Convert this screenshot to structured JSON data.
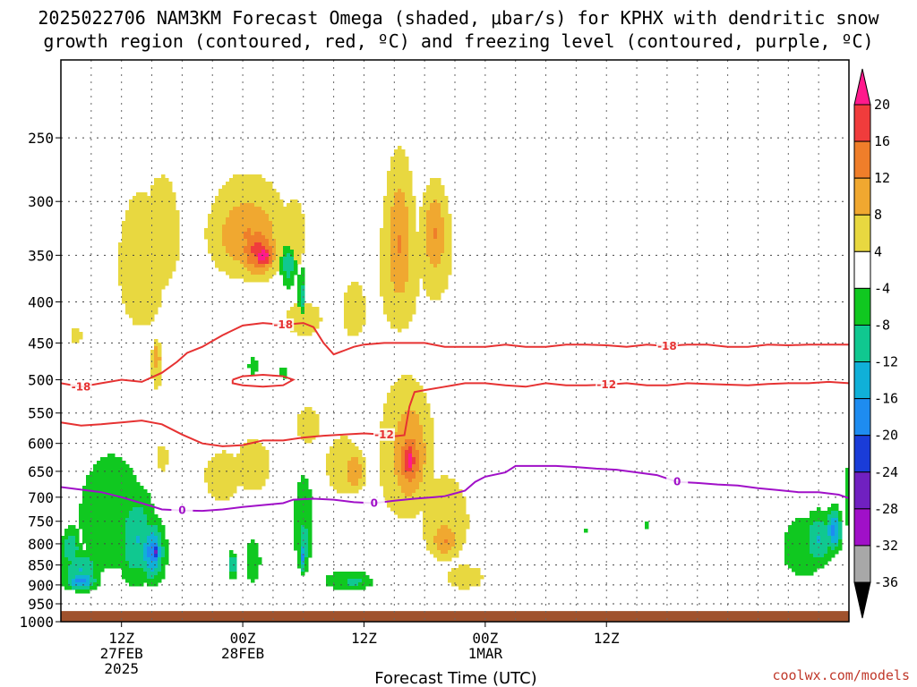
{
  "chart_data": {
    "type": "heatmap",
    "title_line1": "2025022706 NAM3KM Forecast Omega (shaded, μbar/s) for KPHX with dendritic snow",
    "title_line2": "growth region (contoured, red, ºC) and freezing level (contoured, purple, ºC)",
    "xlabel": "Forecast Time (UTC)",
    "credit": "coolwx.com/models",
    "y_scale": "log-pressure",
    "ylim": [
      1000,
      200
    ],
    "pressure_ticks": [
      "250",
      "300",
      "350",
      "400",
      "450",
      "500",
      "550",
      "600",
      "650",
      "700",
      "750",
      "800",
      "850",
      "900",
      "950",
      "1000"
    ],
    "x_range_hours": [
      6,
      84
    ],
    "time_ticks": [
      {
        "hour": 12,
        "l1": "12Z",
        "l2": "27FEB",
        "l3": "2025"
      },
      {
        "hour": 24,
        "l1": "00Z",
        "l2": "28FEB",
        "l3": ""
      },
      {
        "hour": 36,
        "l1": "12Z",
        "l2": "",
        "l3": ""
      },
      {
        "hour": 48,
        "l1": "00Z",
        "l2": "1MAR",
        "l3": ""
      },
      {
        "hour": 60,
        "l1": "12Z",
        "l2": "",
        "l3": ""
      }
    ],
    "grid": true,
    "ground_pressure": 970,
    "colorbar": {
      "labels": [
        "20",
        "16",
        "12",
        "8",
        "4",
        "-4",
        "-8",
        "-12",
        "-16",
        "-20",
        "-24",
        "-28",
        "-32",
        "-36"
      ],
      "colors": [
        "#ff1a8c",
        "#f03c3c",
        "#ef7e2a",
        "#f0a830",
        "#e8d840",
        "#ffffff",
        "#10c820",
        "#10c890",
        "#10b0d8",
        "#1e8cf0",
        "#1a3cd8",
        "#7020c0",
        "#a010c8",
        "#a8a8a8",
        "#000000"
      ]
    },
    "omega_blobs": [
      {
        "t": 14,
        "p": 360,
        "rt": 4,
        "rp": 120,
        "v": 5
      },
      {
        "t": 16,
        "p": 330,
        "rt": 3,
        "rp": 90,
        "v": 5
      },
      {
        "t": 24.5,
        "p": 325,
        "rt": 7,
        "rp": 85,
        "v": 5
      },
      {
        "t": 24.5,
        "p": 330,
        "rt": 5,
        "rp": 55,
        "v": 9
      },
      {
        "t": 25.5,
        "p": 345,
        "rt": 2.6,
        "rp": 35,
        "v": 13
      },
      {
        "t": 26,
        "p": 350,
        "rt": 1.5,
        "rp": 18,
        "v": 17
      },
      {
        "t": 29,
        "p": 330,
        "rt": 2,
        "rp": 55,
        "v": 5
      },
      {
        "t": 28.5,
        "p": 360,
        "rt": 1,
        "rp": 30,
        "v": -8
      },
      {
        "t": 30,
        "p": 420,
        "rt": 3,
        "rp": 35,
        "v": 5
      },
      {
        "t": 35,
        "p": 410,
        "rt": 2,
        "rp": 55,
        "v": 5
      },
      {
        "t": 39.5,
        "p": 360,
        "rt": 3.5,
        "rp": 130,
        "v": 5
      },
      {
        "t": 39.5,
        "p": 340,
        "rt": 2,
        "rp": 100,
        "v": 9
      },
      {
        "t": 43,
        "p": 340,
        "rt": 3,
        "rp": 100,
        "v": 5
      },
      {
        "t": 43,
        "p": 330,
        "rt": 1.8,
        "rp": 60,
        "v": 9
      },
      {
        "t": 40,
        "p": 620,
        "rt": 4.5,
        "rp": 220,
        "v": 5
      },
      {
        "t": 40.5,
        "p": 620,
        "rt": 3,
        "rp": 150,
        "v": 9
      },
      {
        "t": 40.5,
        "p": 630,
        "rt": 1.8,
        "rp": 80,
        "v": 13
      },
      {
        "t": 40.5,
        "p": 630,
        "rt": 0.9,
        "rp": 50,
        "v": 17
      },
      {
        "t": 34,
        "p": 640,
        "rt": 3,
        "rp": 90,
        "v": 5
      },
      {
        "t": 35,
        "p": 650,
        "rt": 1.5,
        "rp": 50,
        "v": 9
      },
      {
        "t": 44,
        "p": 750,
        "rt": 4,
        "rp": 160,
        "v": 5
      },
      {
        "t": 44,
        "p": 790,
        "rt": 2,
        "rp": 60,
        "v": 9
      },
      {
        "t": 46,
        "p": 880,
        "rt": 3,
        "rp": 50,
        "v": 5
      },
      {
        "t": 22,
        "p": 660,
        "rt": 3,
        "rp": 80,
        "v": 5
      },
      {
        "t": 25,
        "p": 640,
        "rt": 3,
        "rp": 80,
        "v": 5
      },
      {
        "t": 30.5,
        "p": 570,
        "rt": 2,
        "rp": 50,
        "v": 5
      },
      {
        "t": 15.5,
        "p": 480,
        "rt": 1,
        "rp": 60,
        "v": 5
      },
      {
        "t": 15.5,
        "p": 470,
        "rt": 0.5,
        "rp": 30,
        "v": 9
      },
      {
        "t": 7.5,
        "p": 440,
        "rt": 0.9,
        "rp": 18,
        "v": 5
      },
      {
        "t": 16,
        "p": 625,
        "rt": 1,
        "rp": 40,
        "v": 5
      },
      {
        "t": 11,
        "p": 740,
        "rt": 5.5,
        "rp": 210,
        "v": -5
      },
      {
        "t": 13.5,
        "p": 790,
        "rt": 2.5,
        "rp": 140,
        "v": -9
      },
      {
        "t": 15,
        "p": 820,
        "rt": 1.6,
        "rp": 90,
        "v": -13
      },
      {
        "t": 15.3,
        "p": 820,
        "rt": 0.8,
        "rp": 45,
        "v": -17
      },
      {
        "t": 15.3,
        "p": 820,
        "rt": 0.4,
        "rp": 25,
        "v": -21
      },
      {
        "t": 8,
        "p": 860,
        "rt": 2.5,
        "rp": 60,
        "v": -9
      },
      {
        "t": 7,
        "p": 810,
        "rt": 1.2,
        "rp": 60,
        "v": -9
      },
      {
        "t": 8,
        "p": 890,
        "rt": 2,
        "rp": 30,
        "v": -13
      },
      {
        "t": 25,
        "p": 840,
        "rt": 1.2,
        "rp": 90,
        "v": -5
      },
      {
        "t": 23,
        "p": 850,
        "rt": 0.6,
        "rp": 40,
        "v": -9
      },
      {
        "t": 30,
        "p": 760,
        "rt": 1.6,
        "rp": 180,
        "v": -5
      },
      {
        "t": 30,
        "p": 800,
        "rt": 0.8,
        "rp": 90,
        "v": -9
      },
      {
        "t": 30,
        "p": 830,
        "rt": 0.4,
        "rp": 50,
        "v": -13
      },
      {
        "t": 34.5,
        "p": 890,
        "rt": 4,
        "rp": 45,
        "v": -5
      },
      {
        "t": 35,
        "p": 890,
        "rt": 1.5,
        "rp": 20,
        "v": -9
      },
      {
        "t": 29.8,
        "p": 395,
        "rt": 0.6,
        "rp": 60,
        "v": -5
      },
      {
        "t": 29.8,
        "p": 395,
        "rt": 0.35,
        "rp": 35,
        "v": -9
      },
      {
        "t": 25,
        "p": 480,
        "rt": 0.7,
        "rp": 20,
        "v": -5
      },
      {
        "t": 28,
        "p": 490,
        "rt": 0.4,
        "rp": 16,
        "v": -5
      },
      {
        "t": 79.5,
        "p": 810,
        "rt": 3.5,
        "rp": 120,
        "v": -5
      },
      {
        "t": 81,
        "p": 790,
        "rt": 2,
        "rp": 80,
        "v": -9
      },
      {
        "t": 82.5,
        "p": 770,
        "rt": 1,
        "rp": 60,
        "v": -13
      },
      {
        "t": 84,
        "p": 700,
        "rt": 0.6,
        "rp": 120,
        "v": -5
      },
      {
        "t": 64,
        "p": 760,
        "rt": 0.3,
        "rp": 14,
        "v": -5
      },
      {
        "t": 58,
        "p": 770,
        "rt": 0.3,
        "rp": 12,
        "v": -5
      }
    ],
    "contours": [
      {
        "label": "-18",
        "label_t": [
          9,
          28,
          66
        ],
        "color": "#e63232",
        "points": [
          [
            6,
            505
          ],
          [
            8,
            510
          ],
          [
            10,
            505
          ],
          [
            12,
            500
          ],
          [
            14,
            503
          ],
          [
            16,
            490
          ],
          [
            17.5,
            475
          ],
          [
            18.5,
            463
          ],
          [
            20,
            455
          ],
          [
            22,
            440
          ],
          [
            24,
            428
          ],
          [
            26,
            425
          ],
          [
            28,
            427
          ],
          [
            30,
            425
          ],
          [
            31,
            430
          ],
          [
            32,
            450
          ],
          [
            33,
            465
          ],
          [
            34,
            460
          ],
          [
            35,
            455
          ],
          [
            36,
            452
          ],
          [
            38,
            450
          ],
          [
            40,
            450
          ],
          [
            42,
            450
          ],
          [
            44,
            455
          ],
          [
            46,
            455
          ],
          [
            48,
            455
          ],
          [
            50,
            452
          ],
          [
            52,
            455
          ],
          [
            54,
            455
          ],
          [
            56,
            452
          ],
          [
            58,
            452
          ],
          [
            60,
            453
          ],
          [
            62,
            455
          ],
          [
            64,
            452
          ],
          [
            66,
            454
          ],
          [
            68,
            452
          ],
          [
            70,
            452
          ],
          [
            72,
            455
          ],
          [
            74,
            455
          ],
          [
            76,
            452
          ],
          [
            78,
            453
          ],
          [
            80,
            452
          ],
          [
            82,
            452
          ],
          [
            84,
            452
          ]
        ]
      },
      {
        "label": "-12",
        "label_t": [
          38,
          60
        ],
        "color": "#e63232",
        "points": [
          [
            6,
            565
          ],
          [
            8,
            570
          ],
          [
            10,
            568
          ],
          [
            12,
            565
          ],
          [
            14,
            562
          ],
          [
            16,
            568
          ],
          [
            18,
            585
          ],
          [
            20,
            600
          ],
          [
            22,
            605
          ],
          [
            24,
            603
          ],
          [
            26,
            595
          ],
          [
            28,
            595
          ],
          [
            30,
            590
          ],
          [
            32,
            587
          ],
          [
            34,
            585
          ],
          [
            36,
            583
          ],
          [
            38,
            585
          ],
          [
            39,
            588
          ],
          [
            40,
            586
          ],
          [
            40.5,
            540
          ],
          [
            41,
            518
          ],
          [
            42,
            515
          ],
          [
            44,
            510
          ],
          [
            46,
            505
          ],
          [
            48,
            505
          ],
          [
            50,
            508
          ],
          [
            52,
            510
          ],
          [
            54,
            505
          ],
          [
            56,
            508
          ],
          [
            58,
            508
          ],
          [
            60,
            507
          ],
          [
            62,
            505
          ],
          [
            64,
            508
          ],
          [
            66,
            508
          ],
          [
            68,
            505
          ],
          [
            70,
            506
          ],
          [
            72,
            507
          ],
          [
            74,
            508
          ],
          [
            76,
            506
          ],
          [
            78,
            505
          ],
          [
            80,
            505
          ],
          [
            82,
            503
          ],
          [
            84,
            505
          ]
        ]
      },
      {
        "label": "",
        "label_t": [],
        "color": "#e63232",
        "points": [
          [
            23,
            500
          ],
          [
            24,
            495
          ],
          [
            26,
            493
          ],
          [
            28,
            495
          ],
          [
            29,
            500
          ],
          [
            28,
            508
          ],
          [
            26,
            510
          ],
          [
            24,
            508
          ],
          [
            23,
            505
          ],
          [
            23,
            500
          ]
        ]
      },
      {
        "label": "0",
        "label_t": [
          18,
          38,
          67
        ],
        "color": "#a010c8",
        "points": [
          [
            6,
            680
          ],
          [
            8,
            685
          ],
          [
            10,
            690
          ],
          [
            12,
            700
          ],
          [
            14,
            712
          ],
          [
            16,
            725
          ],
          [
            18,
            727
          ],
          [
            20,
            728
          ],
          [
            22,
            725
          ],
          [
            24,
            720
          ],
          [
            26,
            716
          ],
          [
            28,
            712
          ],
          [
            29,
            705
          ],
          [
            31,
            703
          ],
          [
            33,
            705
          ],
          [
            35,
            710
          ],
          [
            37,
            712
          ],
          [
            39,
            707
          ],
          [
            41,
            703
          ],
          [
            43,
            700
          ],
          [
            44,
            698
          ],
          [
            46,
            687
          ],
          [
            47,
            670
          ],
          [
            48,
            660
          ],
          [
            50,
            652
          ],
          [
            51,
            640
          ],
          [
            53,
            640
          ],
          [
            55,
            640
          ],
          [
            57,
            642
          ],
          [
            59,
            645
          ],
          [
            61,
            647
          ],
          [
            63,
            652
          ],
          [
            65,
            657
          ],
          [
            67,
            670
          ],
          [
            69,
            672
          ],
          [
            71,
            675
          ],
          [
            73,
            677
          ],
          [
            75,
            682
          ],
          [
            77,
            686
          ],
          [
            79,
            690
          ],
          [
            81,
            690
          ],
          [
            83,
            695
          ],
          [
            84,
            702
          ]
        ]
      }
    ]
  }
}
